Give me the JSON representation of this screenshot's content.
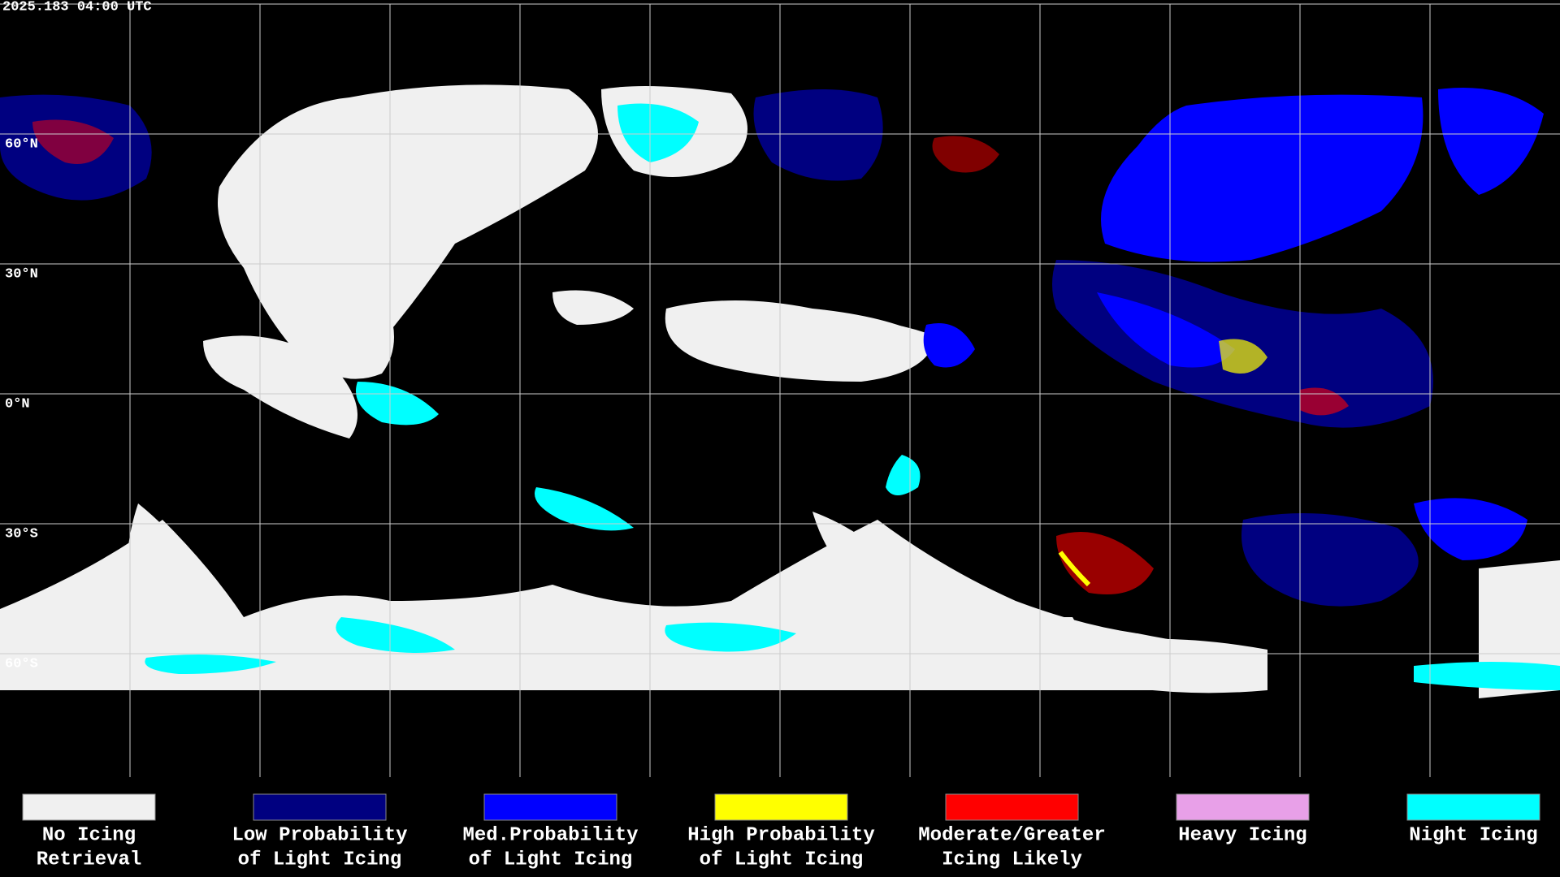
{
  "timestamp": "2025.183 04:00 UTC",
  "latitude_labels": [
    "60°N",
    "30°N",
    "0°N",
    "30°S",
    "60°S"
  ],
  "legend": [
    {
      "label_lines": [
        "No Icing",
        "Retrieval"
      ],
      "color": "#f0f0f0"
    },
    {
      "label_lines": [
        "Low Probability",
        "of Light Icing"
      ],
      "color": "#000080"
    },
    {
      "label_lines": [
        "Med.Probability",
        "of Light Icing"
      ],
      "color": "#0000ff"
    },
    {
      "label_lines": [
        "High Probability",
        "of Light Icing"
      ],
      "color": "#ffff00"
    },
    {
      "label_lines": [
        "Moderate/Greater",
        "Icing Likely"
      ],
      "color": "#ff0000"
    },
    {
      "label_lines": [
        "Heavy Icing"
      ],
      "color": "#e8a0e8"
    },
    {
      "label_lines": [
        "Night Icing"
      ],
      "color": "#00ffff"
    }
  ]
}
